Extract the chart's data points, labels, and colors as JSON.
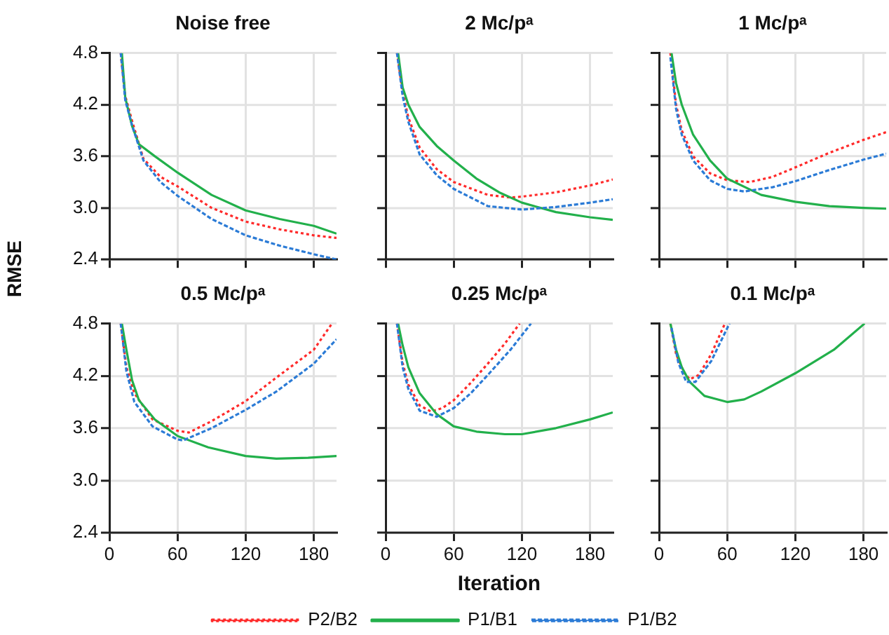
{
  "chart_data": [
    {
      "type": "line",
      "title": "Noise free",
      "ylabel": "RMSE",
      "xlim": [
        0,
        200
      ],
      "ylim": [
        2.4,
        4.8
      ],
      "xticks": [
        0,
        60,
        120,
        180
      ],
      "yticks": [
        2.4,
        {
          "value": 3.0,
          "label": "3.0"
        },
        3.6,
        4.2,
        4.8
      ],
      "grid": true,
      "tick_labels": "y",
      "series": [
        {
          "color": "#ff2a2a",
          "line_style": "dotted",
          "x": [
            10,
            14,
            20,
            30,
            45,
            60,
            90,
            120,
            150,
            180,
            200
          ],
          "values": [
            4.8,
            4.3,
            4.01,
            3.57,
            3.36,
            3.25,
            3.0,
            2.84,
            2.75,
            2.68,
            2.65
          ]
        },
        {
          "color": "#22b04b",
          "line_style": "solid",
          "x": [
            11,
            14,
            20,
            26,
            40,
            60,
            90,
            120,
            150,
            180,
            200
          ],
          "values": [
            4.8,
            4.28,
            3.95,
            3.74,
            3.6,
            3.41,
            3.15,
            2.97,
            2.87,
            2.79,
            2.7
          ]
        },
        {
          "color": "#2b7bd6",
          "line_style": "dashed",
          "x": [
            10,
            14,
            20,
            30,
            45,
            60,
            90,
            120,
            150,
            180,
            200
          ],
          "values": [
            4.8,
            4.25,
            3.96,
            3.55,
            3.3,
            3.14,
            2.87,
            2.68,
            2.56,
            2.46,
            2.4
          ]
        }
      ]
    },
    {
      "type": "line",
      "title": "2 Mc/pᵃ",
      "xlim": [
        0,
        200
      ],
      "ylim": [
        2.4,
        4.8
      ],
      "xticks": [
        0,
        60,
        120,
        180
      ],
      "yticks": [
        2.4,
        3.0,
        3.6,
        4.2,
        4.8
      ],
      "grid": true,
      "tick_labels": false,
      "series": [
        {
          "color": "#ff2a2a",
          "line_style": "dotted",
          "x": [
            10,
            15,
            20,
            30,
            45,
            60,
            90,
            110,
            120,
            150,
            180,
            200
          ],
          "values": [
            4.8,
            4.35,
            4.05,
            3.7,
            3.45,
            3.3,
            3.15,
            3.12,
            3.13,
            3.18,
            3.26,
            3.33
          ]
        },
        {
          "color": "#22b04b",
          "line_style": "solid",
          "x": [
            11,
            15,
            20,
            30,
            45,
            60,
            80,
            100,
            120,
            150,
            180,
            200
          ],
          "values": [
            4.8,
            4.4,
            4.2,
            3.94,
            3.72,
            3.55,
            3.34,
            3.18,
            3.06,
            2.95,
            2.89,
            2.86
          ]
        },
        {
          "color": "#2b7bd6",
          "line_style": "dashed",
          "x": [
            10,
            15,
            20,
            30,
            45,
            60,
            90,
            120,
            150,
            180,
            200
          ],
          "values": [
            4.8,
            4.3,
            4.0,
            3.62,
            3.38,
            3.22,
            3.02,
            2.98,
            3.01,
            3.06,
            3.1
          ]
        }
      ]
    },
    {
      "type": "line",
      "title": "1 Mc/pᵃ",
      "xlim": [
        0,
        200
      ],
      "ylim": [
        2.4,
        4.8
      ],
      "xticks": [
        0,
        60,
        120,
        180
      ],
      "yticks": [
        2.4,
        3.0,
        3.6,
        4.2,
        4.8
      ],
      "grid": true,
      "tick_labels": false,
      "series": [
        {
          "color": "#ff2a2a",
          "line_style": "dotted",
          "x": [
            10,
            15,
            20,
            30,
            45,
            60,
            80,
            100,
            120,
            150,
            180,
            200
          ],
          "values": [
            4.8,
            4.2,
            3.9,
            3.6,
            3.4,
            3.32,
            3.3,
            3.36,
            3.47,
            3.64,
            3.79,
            3.88
          ]
        },
        {
          "color": "#22b04b",
          "line_style": "solid",
          "x": [
            11,
            15,
            20,
            30,
            45,
            60,
            90,
            120,
            150,
            180,
            200
          ],
          "values": [
            4.8,
            4.45,
            4.2,
            3.85,
            3.55,
            3.34,
            3.15,
            3.07,
            3.02,
            3.0,
            2.99
          ]
        },
        {
          "color": "#2b7bd6",
          "line_style": "dashed",
          "x": [
            10,
            15,
            20,
            30,
            45,
            60,
            75,
            100,
            120,
            150,
            180,
            200
          ],
          "values": [
            4.75,
            4.15,
            3.85,
            3.55,
            3.32,
            3.22,
            3.19,
            3.24,
            3.31,
            3.44,
            3.56,
            3.63
          ]
        }
      ]
    },
    {
      "type": "line",
      "title": "0.5 Mc/pᵃ",
      "xlim": [
        0,
        200
      ],
      "ylim": [
        2.4,
        4.8
      ],
      "xticks": [
        0,
        60,
        120,
        180
      ],
      "yticks": [
        2.4,
        {
          "value": 3.0,
          "label": "3.0"
        },
        3.6,
        4.2,
        4.8
      ],
      "grid": true,
      "series": [
        {
          "color": "#ff2a2a",
          "line_style": "dotted",
          "x": [
            10,
            15,
            22,
            38,
            60,
            70,
            90,
            120,
            147,
            180,
            196
          ],
          "values": [
            4.8,
            4.3,
            4.0,
            3.7,
            3.57,
            3.55,
            3.68,
            3.91,
            4.18,
            4.5,
            4.8
          ]
        },
        {
          "color": "#22b04b",
          "line_style": "solid",
          "x": [
            11,
            15,
            20,
            26,
            40,
            60,
            87,
            120,
            147,
            175,
            200
          ],
          "values": [
            4.8,
            4.5,
            4.15,
            3.92,
            3.7,
            3.51,
            3.38,
            3.28,
            3.25,
            3.26,
            3.28
          ]
        },
        {
          "color": "#2b7bd6",
          "line_style": "dashed",
          "x": [
            10,
            15,
            22,
            38,
            60,
            65,
            90,
            120,
            147,
            180,
            200
          ],
          "values": [
            4.8,
            4.25,
            3.9,
            3.62,
            3.47,
            3.46,
            3.6,
            3.81,
            4.02,
            4.34,
            4.62
          ]
        }
      ]
    },
    {
      "type": "line",
      "title": "0.25 Mc/pᵃ",
      "xlabel": "Iteration",
      "legend": "bottom",
      "xlim": [
        0,
        200
      ],
      "ylim": [
        2.4,
        4.8
      ],
      "xticks": [
        0,
        60,
        120,
        180
      ],
      "yticks": [
        2.4,
        3.0,
        3.6,
        4.2,
        4.8
      ],
      "grid": true,
      "tick_labels": "x",
      "series": [
        {
          "name": "P2/B2",
          "color": "#ff2a2a",
          "line_style": "dotted",
          "x": [
            10,
            15,
            20,
            30,
            40,
            50,
            60,
            75,
            90,
            105,
            118
          ],
          "values": [
            4.8,
            4.35,
            4.1,
            3.86,
            3.79,
            3.83,
            3.92,
            4.12,
            4.34,
            4.57,
            4.8
          ]
        },
        {
          "name": "P1/B1",
          "color": "#22b04b",
          "line_style": "solid",
          "x": [
            11,
            15,
            20,
            30,
            45,
            60,
            80,
            105,
            120,
            150,
            180,
            200
          ],
          "values": [
            4.8,
            4.55,
            4.3,
            4.0,
            3.76,
            3.62,
            3.56,
            3.53,
            3.53,
            3.6,
            3.7,
            3.78
          ]
        },
        {
          "name": "P1/B2",
          "color": "#2b7bd6",
          "line_style": "dashed",
          "x": [
            10,
            15,
            20,
            30,
            45,
            60,
            75,
            90,
            110,
            128
          ],
          "values": [
            4.8,
            4.3,
            4.05,
            3.8,
            3.73,
            3.83,
            4.0,
            4.21,
            4.5,
            4.8
          ]
        }
      ]
    },
    {
      "type": "line",
      "title": "0.1 Mc/pᵃ",
      "xlim": [
        0,
        200
      ],
      "ylim": [
        2.4,
        4.8
      ],
      "xticks": [
        0,
        60,
        120,
        180
      ],
      "yticks": [
        2.4,
        3.0,
        3.6,
        4.2,
        4.8
      ],
      "grid": true,
      "tick_labels": "x",
      "series": [
        {
          "color": "#ff2a2a",
          "line_style": "dotted",
          "x": [
            10,
            15,
            22,
            27,
            35,
            46,
            58
          ],
          "values": [
            4.8,
            4.45,
            4.24,
            4.16,
            4.21,
            4.45,
            4.8
          ]
        },
        {
          "color": "#22b04b",
          "line_style": "solid",
          "x": [
            10,
            15,
            20,
            27,
            40,
            60,
            75,
            90,
            120,
            154,
            181
          ],
          "values": [
            4.8,
            4.5,
            4.3,
            4.13,
            3.97,
            3.9,
            3.93,
            4.02,
            4.23,
            4.5,
            4.8
          ]
        },
        {
          "color": "#2b7bd6",
          "line_style": "dashed",
          "x": [
            11,
            17,
            24,
            32,
            46,
            62
          ],
          "values": [
            4.75,
            4.35,
            4.13,
            4.13,
            4.37,
            4.8
          ]
        }
      ]
    }
  ]
}
